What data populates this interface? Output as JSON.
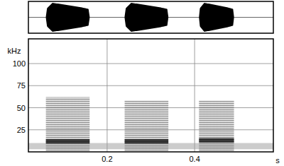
{
  "chart_data": {
    "type": "spectrogram",
    "x_label": "s",
    "y_label": "kHz",
    "xlim": [
      0.02,
      0.58
    ],
    "ylim": [
      0,
      128
    ],
    "xticks": [
      0.2,
      0.4
    ],
    "yticks": [
      25,
      50,
      75,
      100
    ],
    "grid": true,
    "noise_band": [
      3,
      10
    ],
    "syllables": [
      {
        "start": 0.06,
        "end": 0.16,
        "max_freq": 62,
        "peak_freq": 12
      },
      {
        "start": 0.24,
        "end": 0.34,
        "max_freq": 58,
        "peak_freq": 12
      },
      {
        "start": 0.41,
        "end": 0.49,
        "max_freq": 58,
        "peak_freq": 13
      }
    ]
  }
}
